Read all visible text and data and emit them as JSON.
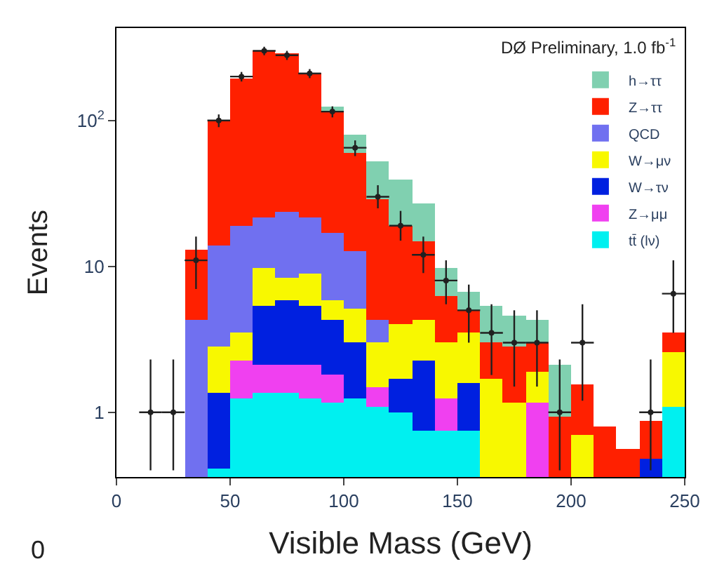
{
  "chart_data": {
    "type": "bar",
    "title": "DØ Preliminary, 1.0 fb$^{-1}$",
    "xlabel": "Visible Mass (GeV)",
    "ylabel": "Events",
    "x": [
      35,
      45,
      55,
      65,
      75,
      85,
      95,
      105,
      115,
      125,
      135,
      145,
      155,
      165,
      175,
      185,
      195,
      205,
      215,
      225,
      235,
      245
    ],
    "stacked": true,
    "log": "y",
    "legend": "top right",
    "marker": "circle",
    "xlim": [
      0,
      250
    ],
    "xticks": [
      0,
      50,
      100,
      150,
      200,
      250
    ],
    "ylim": [
      0.36,
      430
    ],
    "yticks": [
      1,
      10,
      {
        "value": 100,
        "label": "10$^{2}$"
      }
    ],
    "annotations": [
      "0"
    ],
    "series": [
      {
        "name": "tt̄ (lν)",
        "color": "#00f0f0",
        "values": [
          null,
          0.41,
          1.25,
          1.36,
          1.36,
          1.25,
          1.17,
          1.25,
          1.1,
          1.0,
          0.75,
          0.75,
          0.75,
          null,
          null,
          null,
          null,
          null,
          null,
          null,
          null,
          1.1
        ]
      },
      {
        "name": "Z→μμ",
        "color": "#f040f0",
        "values": [
          null,
          null,
          1.0,
          0.74,
          0.74,
          0.85,
          0.63,
          null,
          0.4,
          null,
          null,
          0.5,
          null,
          null,
          null,
          1.17,
          null,
          null,
          null,
          null,
          null,
          null
        ]
      },
      {
        "name": "W→τν",
        "color": "#0020e0",
        "values": [
          null,
          0.95,
          null,
          3.3,
          3.7,
          3.3,
          2.5,
          1.75,
          null,
          0.7,
          1.5,
          null,
          0.85,
          null,
          null,
          null,
          null,
          null,
          null,
          null,
          0.48,
          null
        ]
      },
      {
        "name": "W→μν",
        "color": "#f8f800",
        "values": [
          null,
          1.44,
          1.25,
          4.4,
          2.6,
          3.6,
          1.5,
          2.1,
          1.5,
          2.3,
          2.05,
          1.75,
          1.9,
          1.7,
          1.17,
          0.73,
          null,
          0.7,
          null,
          null,
          null,
          1.5
        ]
      },
      {
        "name": "QCD",
        "color": "#7070f0",
        "values": [
          4.3,
          11.1,
          15.4,
          11.7,
          15.1,
          12.5,
          11.2,
          7.6,
          1.3,
          null,
          null,
          null,
          null,
          null,
          null,
          null,
          null,
          null,
          null,
          null,
          null,
          null
        ]
      },
      {
        "name": "Z→ττ",
        "color": "#ff2000",
        "values": [
          8.7,
          86,
          174,
          278,
          266,
          188,
          100,
          47,
          24.7,
          15,
          10.7,
          3.3,
          1.5,
          1.3,
          1.63,
          1.1,
          0.94,
          0.85,
          0.8,
          0.56,
          0.4,
          0.9
        ]
      },
      {
        "name": "h→ττ",
        "color": "#80d0b0",
        "values": [
          null,
          null,
          null,
          null,
          null,
          null,
          7,
          20,
          23,
          20,
          12,
          3.5,
          1.7,
          2.4,
          1.8,
          1.3,
          1.16,
          null,
          null,
          null,
          null,
          null
        ]
      },
      {
        "type": "scatter",
        "color": "#202020",
        "x": [
          15,
          25,
          35,
          45,
          55,
          65,
          75,
          85,
          95,
          105,
          115,
          125,
          135,
          145,
          155,
          165,
          175,
          185,
          195,
          205,
          235,
          245
        ],
        "values": [
          1,
          1,
          11,
          100,
          200,
          300,
          280,
          210,
          115,
          65,
          30,
          19,
          12,
          8,
          5,
          3.5,
          3,
          3,
          1,
          3,
          1,
          6.5
        ],
        "xerrors": [
          5,
          5,
          5,
          5,
          5,
          5,
          5,
          5,
          5,
          5,
          5,
          5,
          5,
          5,
          5,
          5,
          5,
          5,
          5,
          5,
          5,
          5
        ],
        "errors": [
          [
            0.4,
            2.3
          ],
          [
            0.4,
            2.3
          ],
          [
            7,
            16
          ],
          [
            90,
            110
          ],
          [
            185,
            215
          ],
          [
            280,
            320
          ],
          [
            260,
            300
          ],
          [
            195,
            225
          ],
          [
            105,
            125
          ],
          [
            57,
            73
          ],
          [
            25,
            36
          ],
          [
            15,
            24
          ],
          [
            9,
            16
          ],
          [
            5.5,
            11
          ],
          [
            3,
            7.5
          ],
          [
            1.8,
            5.5
          ],
          [
            1.5,
            5
          ],
          [
            1.5,
            5
          ],
          [
            0.4,
            2.3
          ],
          [
            1.2,
            5.5
          ],
          [
            0.4,
            2.3
          ],
          [
            3.5,
            11
          ]
        ]
      }
    ]
  }
}
